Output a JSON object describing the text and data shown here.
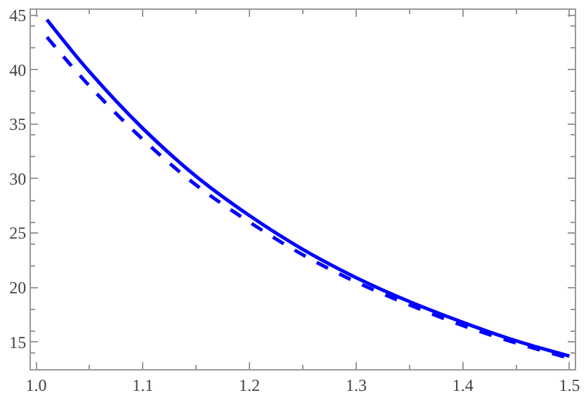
{
  "chart_data": {
    "type": "line",
    "x": [
      1.01,
      1.05,
      1.1,
      1.15,
      1.2,
      1.25,
      1.3,
      1.35,
      1.4,
      1.45,
      1.5
    ],
    "series": [
      {
        "color": "#0000ff",
        "line_style": "solid",
        "values": [
          44.6,
          39.8,
          34.6,
          30.2,
          26.6,
          23.5,
          20.9,
          18.7,
          16.8,
          15.1,
          13.7
        ]
      },
      {
        "color": "#0000ff",
        "line_style": "dashed",
        "values": [
          43.0,
          38.5,
          33.6,
          29.4,
          26.0,
          23.0,
          20.5,
          18.4,
          16.5,
          14.9,
          13.5
        ]
      }
    ],
    "xlim": [
      0.995,
      1.505
    ],
    "ylim": [
      12.5,
      45.5
    ],
    "xticks": [
      {
        "value": 1.0,
        "label": "1.0"
      },
      1.1,
      1.2,
      1.3,
      1.4,
      1.5
    ],
    "yticks": [
      15,
      20,
      25,
      30,
      35,
      40,
      45
    ]
  }
}
